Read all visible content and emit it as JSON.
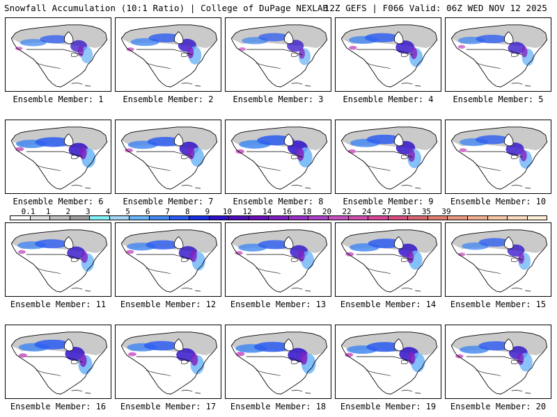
{
  "header": {
    "title": "Snowfall Accumulation (10:1 Ratio) | College of DuPage NEXLAB",
    "run_info": "12Z GEFS | F066 Valid: 06Z WED NOV 12 2025"
  },
  "colorbar": {
    "labels": [
      "0.1",
      "1",
      "2",
      "3",
      "4",
      "5",
      "6",
      "7",
      "8",
      "9",
      "10",
      "12",
      "14",
      "16",
      "18",
      "20",
      "22",
      "24",
      "27",
      "31",
      "35",
      "39"
    ],
    "colors": [
      "#ffffff",
      "#e0e0e0",
      "#c0c0c0",
      "#a0a0a0",
      "#84f0f8",
      "#a8d8f8",
      "#6cb4f8",
      "#4488f0",
      "#2c5cf0",
      "#1830e0",
      "#3010c8",
      "#5010b8",
      "#6a10b8",
      "#8020c0",
      "#9a30c8",
      "#b040c8",
      "#c850c0",
      "#d050b0",
      "#d84898",
      "#d85080",
      "#d86870",
      "#e08070",
      "#e89880",
      "#f0b090",
      "#f8c8a8",
      "#fcdcc0",
      "#fff0d8"
    ]
  },
  "panels": [
    {
      "label": "Ensemble Member: 1",
      "snow_intensity": 0.55
    },
    {
      "label": "Ensemble Member: 2",
      "snow_intensity": 0.7
    },
    {
      "label": "Ensemble Member: 3",
      "snow_intensity": 0.55
    },
    {
      "label": "Ensemble Member: 4",
      "snow_intensity": 0.75
    },
    {
      "label": "Ensemble Member: 5",
      "snow_intensity": 0.6
    },
    {
      "label": "Ensemble Member: 6",
      "snow_intensity": 0.85
    },
    {
      "label": "Ensemble Member: 7",
      "snow_intensity": 0.8
    },
    {
      "label": "Ensemble Member: 8",
      "snow_intensity": 0.9
    },
    {
      "label": "Ensemble Member: 9",
      "snow_intensity": 0.8
    },
    {
      "label": "Ensemble Member: 10",
      "snow_intensity": 0.7
    },
    {
      "label": "Ensemble Member: 11",
      "snow_intensity": 0.7
    },
    {
      "label": "Ensemble Member: 12",
      "snow_intensity": 0.75
    },
    {
      "label": "Ensemble Member: 13",
      "snow_intensity": 0.7
    },
    {
      "label": "Ensemble Member: 14",
      "snow_intensity": 0.8
    },
    {
      "label": "Ensemble Member: 15",
      "snow_intensity": 0.6
    },
    {
      "label": "Ensemble Member: 16",
      "snow_intensity": 0.85
    },
    {
      "label": "Ensemble Member: 17",
      "snow_intensity": 0.8
    },
    {
      "label": "Ensemble Member: 18",
      "snow_intensity": 0.9
    },
    {
      "label": "Ensemble Member: 19",
      "snow_intensity": 0.85
    },
    {
      "label": "Ensemble Member: 20",
      "snow_intensity": 0.75
    }
  ]
}
